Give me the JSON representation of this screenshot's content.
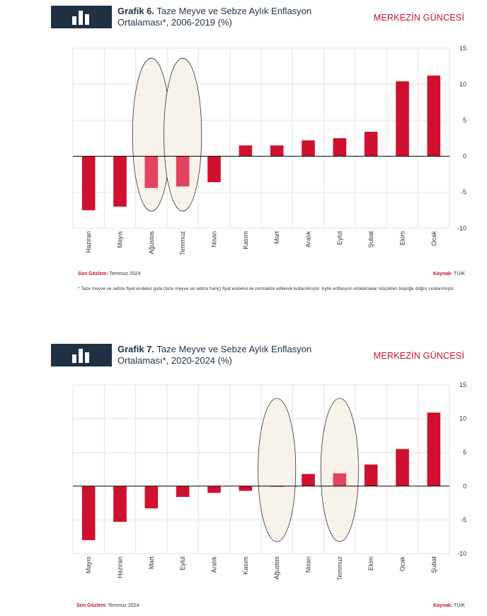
{
  "brand": "MERKEZİN GÜNCESİ",
  "charts": [
    {
      "label": "Grafik 6.",
      "title_line1": "Taze Meyve ve Sebze Aylık Enflasyon",
      "title_line2": "Ortalaması*, 2006-2019  (%)",
      "son_gozlem_label": "Son Gözlem:",
      "son_gozlem_value": "Temmuz 2024",
      "kaynak_label": "Kaynak:",
      "kaynak_value": "TÜİK",
      "note": "* Taze meyve ve sebze fiyat endeksi gıda (taze meyve ve sebze hariç) fiyat endeksi ile normalize edilerek kullanılmıştır. Aylık enflasyon ortalamaları küçükten büyüğe doğru sıralanmıştır."
    },
    {
      "label": "Grafik 7.",
      "title_line1": "Taze Meyve ve Sebze Aylık Enflasyon",
      "title_line2": "Ortalaması*, 2020-2024 (%)",
      "son_gozlem_label": "Son Gözlem:",
      "son_gozlem_value": "Temmuz 2024",
      "kaynak_label": "Kaynak:",
      "kaynak_value": "TÜİK"
    }
  ],
  "colors": {
    "bar": "#d0102f",
    "highlight": "#e0445f",
    "ellipse_fill": "#f8f3ea",
    "ellipse_stroke": "#333333"
  },
  "chart_data": [
    {
      "type": "bar",
      "title": "Taze Meyve ve Sebze Aylık Enflasyon Ortalaması*, 2006-2019 (%)",
      "categories": [
        "Haziran",
        "Mayıs",
        "Ağustos",
        "Temmuz",
        "Nisan",
        "Kasım",
        "Mart",
        "Aralık",
        "Eylül",
        "Şubat",
        "Ekim",
        "Ocak"
      ],
      "values": [
        -7.5,
        -7.0,
        -4.4,
        -4.2,
        -3.6,
        1.5,
        1.5,
        2.2,
        2.5,
        3.4,
        10.4,
        11.2
      ],
      "highlighted": [
        "Ağustos",
        "Temmuz"
      ],
      "yticks": [
        15,
        10,
        5,
        0,
        -5,
        -10
      ],
      "ylim": [
        -10,
        15
      ]
    },
    {
      "type": "bar",
      "title": "Taze Meyve ve Sebze Aylık Enflasyon Ortalaması*, 2020-2024 (%)",
      "categories": [
        "Mayıs",
        "Haziran",
        "Mart",
        "Eylül",
        "Aralık",
        "Kasım",
        "Ağustos",
        "Nisan",
        "Temmuz",
        "Ekim",
        "Ocak",
        "Şubat"
      ],
      "values": [
        -8.0,
        -5.3,
        -3.3,
        -1.6,
        -1.0,
        -0.7,
        -0.1,
        1.8,
        1.9,
        3.2,
        5.5,
        10.9
      ],
      "highlighted": [
        "Ağustos",
        "Temmuz"
      ],
      "yticks": [
        15,
        10,
        5,
        0,
        -5,
        -10
      ],
      "ylim": [
        -10,
        15
      ]
    }
  ]
}
